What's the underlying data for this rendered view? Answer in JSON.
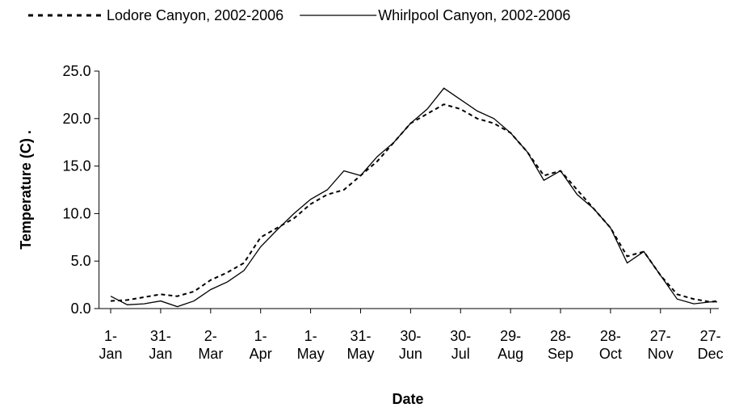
{
  "chart_data": {
    "type": "line",
    "x_label": "Date",
    "y_label": "Temperature (C) .",
    "x": [
      1,
      11,
      21,
      31,
      41,
      51,
      61,
      71,
      81,
      91,
      101,
      111,
      121,
      131,
      141,
      151,
      161,
      171,
      181,
      191,
      201,
      211,
      221,
      231,
      241,
      251,
      261,
      271,
      281,
      291,
      301,
      311,
      321,
      331,
      341,
      351,
      361,
      365
    ],
    "series": [
      {
        "name": "Lodore Canyon, 2002-2006",
        "color": "#000000",
        "dash": "dashed",
        "values": [
          0.8,
          0.9,
          1.2,
          1.5,
          1.3,
          1.8,
          3.0,
          3.8,
          4.8,
          7.5,
          8.5,
          9.5,
          11.0,
          12.0,
          12.5,
          14.0,
          15.5,
          17.5,
          19.5,
          20.5,
          21.5,
          21.0,
          20.0,
          19.5,
          18.5,
          16.5,
          14.0,
          14.5,
          12.5,
          10.5,
          8.5,
          5.5,
          6.0,
          3.5,
          1.5,
          1.0,
          0.7,
          0.8
        ]
      },
      {
        "name": "Whirlpool Canyon, 2002-2006",
        "color": "#000000",
        "dash": "solid",
        "values": [
          1.3,
          0.4,
          0.5,
          0.8,
          0.2,
          0.8,
          2.0,
          2.8,
          4.0,
          6.5,
          8.3,
          10.0,
          11.5,
          12.5,
          14.5,
          14.0,
          16.0,
          17.5,
          19.5,
          21.0,
          23.2,
          22.0,
          20.8,
          20.0,
          18.5,
          16.5,
          13.5,
          14.5,
          12.0,
          10.5,
          8.5,
          4.8,
          6.0,
          3.5,
          1.0,
          0.5,
          0.7,
          0.7
        ]
      }
    ],
    "xlim": [
      -6,
      366
    ],
    "xticks": [
      {
        "value": 1,
        "label": "1- Jan"
      },
      {
        "value": 31,
        "label": "31- Jan"
      },
      {
        "value": 61,
        "label": "2- Mar"
      },
      {
        "value": 91,
        "label": "1- Apr"
      },
      {
        "value": 121,
        "label": "1- May"
      },
      {
        "value": 151,
        "label": "31- May"
      },
      {
        "value": 181,
        "label": "30- Jun"
      },
      {
        "value": 211,
        "label": "30- Jul"
      },
      {
        "value": 241,
        "label": "29- Aug"
      },
      {
        "value": 271,
        "label": "28- Sep"
      },
      {
        "value": 301,
        "label": "28- Oct"
      },
      {
        "value": 331,
        "label": "27- Nov"
      },
      {
        "value": 361,
        "label": "27- Dec"
      }
    ],
    "ylim": [
      0,
      25
    ],
    "yticks": [
      {
        "value": 0,
        "label": "0.0"
      },
      {
        "value": 5,
        "label": "5.0"
      },
      {
        "value": 10,
        "label": "10.0"
      },
      {
        "value": 15,
        "label": "15.0"
      },
      {
        "value": 20,
        "label": "20.0"
      },
      {
        "value": 25,
        "label": "25.0"
      }
    ],
    "legend": "top",
    "grid": false
  }
}
